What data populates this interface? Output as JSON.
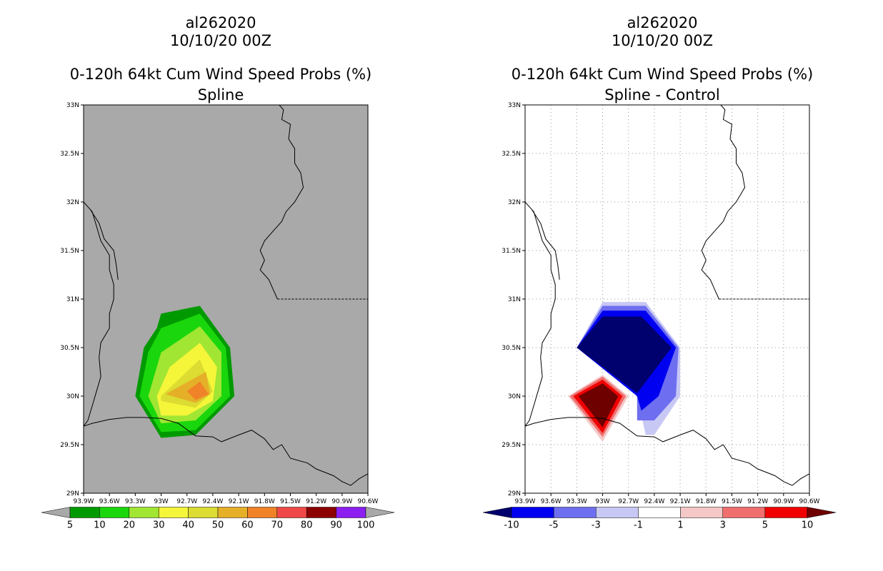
{
  "chart_data": [
    {
      "type": "filled_contour_map",
      "storm_id": "al262020",
      "date": "10/10/20 00Z",
      "title": "0-120h 64kt Cum Wind Speed Probs (%)",
      "subtitle": "Spline",
      "units": "%",
      "grid": false,
      "background": "#a9a9a9",
      "lat_range": [
        29,
        33
      ],
      "lon_range": [
        -93.9,
        -90.6
      ],
      "lat_ticks": [
        "29N",
        "29.5N",
        "30N",
        "30.5N",
        "31N",
        "31.5N",
        "32N",
        "32.5N",
        "33N"
      ],
      "lon_ticks": [
        "93.9W",
        "93.6W",
        "93.3W",
        "93W",
        "92.7W",
        "92.4W",
        "92.1W",
        "91.8W",
        "91.5W",
        "91.2W",
        "90.9W",
        "90.6W"
      ],
      "colorbar": {
        "labels": [
          "5",
          "10",
          "20",
          "30",
          "40",
          "50",
          "60",
          "70",
          "80",
          "90",
          "100"
        ],
        "colors": [
          "#009a00",
          "#1ad60c",
          "#a0e632",
          "#f5f53a",
          "#dcdc32",
          "#e6af28",
          "#f08228",
          "#f04848",
          "#8c0000",
          "#8c1ef0"
        ],
        "end_arrows": true
      },
      "contours": [
        {
          "level": 5,
          "color": "#009a00",
          "points": [
            [
              -93.3,
              30.0
            ],
            [
              -93.2,
              30.5
            ],
            [
              -93.05,
              30.7
            ],
            [
              -93.0,
              30.85
            ],
            [
              -92.55,
              30.93
            ],
            [
              -92.2,
              30.5
            ],
            [
              -92.15,
              30.0
            ],
            [
              -92.6,
              29.6
            ],
            [
              -93.0,
              29.57
            ],
            [
              -93.3,
              30.0
            ]
          ]
        },
        {
          "level": 10,
          "color": "#1ad60c",
          "points": [
            [
              -93.25,
              30.0
            ],
            [
              -93.15,
              30.45
            ],
            [
              -93.0,
              30.7
            ],
            [
              -92.55,
              30.85
            ],
            [
              -92.25,
              30.5
            ],
            [
              -92.2,
              30.0
            ],
            [
              -92.6,
              29.65
            ],
            [
              -93.0,
              29.63
            ],
            [
              -93.25,
              30.0
            ]
          ]
        },
        {
          "level": 20,
          "color": "#a0e632",
          "points": [
            [
              -93.15,
              30.0
            ],
            [
              -93.0,
              30.45
            ],
            [
              -92.55,
              30.72
            ],
            [
              -92.3,
              30.45
            ],
            [
              -92.3,
              30.0
            ],
            [
              -92.6,
              29.75
            ],
            [
              -93.0,
              29.72
            ],
            [
              -93.15,
              30.0
            ]
          ]
        },
        {
          "level": 30,
          "color": "#f5f53a",
          "points": [
            [
              -93.05,
              30.0
            ],
            [
              -92.9,
              30.3
            ],
            [
              -92.55,
              30.55
            ],
            [
              -92.35,
              30.3
            ],
            [
              -92.4,
              29.95
            ],
            [
              -92.7,
              29.8
            ],
            [
              -93.0,
              29.8
            ],
            [
              -93.05,
              30.0
            ]
          ]
        },
        {
          "level": 40,
          "color": "#dcdc32",
          "points": [
            [
              -93.0,
              30.0
            ],
            [
              -92.55,
              30.38
            ],
            [
              -92.4,
              30.05
            ],
            [
              -92.6,
              29.88
            ],
            [
              -93.0,
              29.95
            ],
            [
              -93.0,
              30.0
            ]
          ]
        },
        {
          "level": 50,
          "color": "#e6af28",
          "points": [
            [
              -92.95,
              30.02
            ],
            [
              -92.48,
              30.25
            ],
            [
              -92.43,
              30.02
            ],
            [
              -92.6,
              29.93
            ],
            [
              -92.95,
              30.02
            ]
          ]
        },
        {
          "level": 60,
          "color": "#f08228",
          "points": [
            [
              -92.7,
              30.05
            ],
            [
              -92.55,
              30.15
            ],
            [
              -92.45,
              30.02
            ],
            [
              -92.6,
              29.96
            ],
            [
              -92.7,
              30.05
            ]
          ]
        }
      ]
    },
    {
      "type": "filled_contour_map",
      "storm_id": "al262020",
      "date": "10/10/20 00Z",
      "title": "0-120h 64kt Cum Wind Speed Probs (%)",
      "subtitle": "Spline - Control",
      "units": "%",
      "grid": true,
      "background": "#ffffff",
      "lat_range": [
        29,
        33
      ],
      "lon_range": [
        -93.9,
        -90.6
      ],
      "lat_ticks": [
        "29N",
        "29.5N",
        "30N",
        "30.5N",
        "31N",
        "31.5N",
        "32N",
        "32.5N",
        "33N"
      ],
      "lon_ticks": [
        "93.9W",
        "93.6W",
        "93.3W",
        "93W",
        "92.7W",
        "92.4W",
        "92.1W",
        "91.8W",
        "91.5W",
        "91.2W",
        "90.9W",
        "90.6W"
      ],
      "colorbar": {
        "labels": [
          "-10",
          "-5",
          "-3",
          "-1",
          "1",
          "3",
          "5",
          "10"
        ],
        "colors": [
          "#00006e",
          "#0000f0",
          "#6e6ef0",
          "#c8c8f5",
          "#ffffff",
          "#f5c8c8",
          "#f06e6e",
          "#f00000",
          "#6e0000"
        ],
        "end_arrows": true
      },
      "contours": [
        {
          "level": -1,
          "color": "#c8c8f5",
          "points": [
            [
              -93.3,
              30.5
            ],
            [
              -93.0,
              30.97
            ],
            [
              -92.5,
              30.97
            ],
            [
              -92.1,
              30.5
            ],
            [
              -92.1,
              30.0
            ],
            [
              -92.4,
              29.6
            ],
            [
              -92.5,
              29.6
            ],
            [
              -92.6,
              30.0
            ],
            [
              -93.3,
              30.5
            ]
          ]
        },
        {
          "level": -3,
          "color": "#6e6ef0",
          "points": [
            [
              -93.3,
              30.5
            ],
            [
              -93.0,
              30.93
            ],
            [
              -92.5,
              30.93
            ],
            [
              -92.12,
              30.5
            ],
            [
              -92.15,
              30.0
            ],
            [
              -92.4,
              29.75
            ],
            [
              -92.6,
              29.75
            ],
            [
              -92.6,
              30.0
            ],
            [
              -93.3,
              30.5
            ]
          ]
        },
        {
          "level": -5,
          "color": "#0000f0",
          "points": [
            [
              -93.3,
              30.5
            ],
            [
              -93.0,
              30.88
            ],
            [
              -92.5,
              30.88
            ],
            [
              -92.15,
              30.5
            ],
            [
              -92.35,
              30.0
            ],
            [
              -92.55,
              29.85
            ],
            [
              -92.6,
              30.0
            ],
            [
              -93.3,
              30.5
            ]
          ]
        },
        {
          "level": -10,
          "color": "#00006e",
          "points": [
            [
              -93.3,
              30.5
            ],
            [
              -93.0,
              30.82
            ],
            [
              -92.55,
              30.82
            ],
            [
              -92.2,
              30.5
            ],
            [
              -92.6,
              30.03
            ],
            [
              -93.3,
              30.5
            ]
          ]
        },
        {
          "level": 1,
          "color": "#f5c8c8",
          "points": [
            [
              -93.4,
              30.0
            ],
            [
              -93.0,
              30.22
            ],
            [
              -92.7,
              30.0
            ],
            [
              -93.0,
              29.53
            ],
            [
              -93.4,
              30.0
            ]
          ]
        },
        {
          "level": 3,
          "color": "#f06e6e",
          "points": [
            [
              -93.38,
              30.0
            ],
            [
              -93.0,
              30.2
            ],
            [
              -92.73,
              30.0
            ],
            [
              -93.0,
              29.58
            ],
            [
              -93.38,
              30.0
            ]
          ]
        },
        {
          "level": 5,
          "color": "#f00000",
          "points": [
            [
              -93.34,
              30.0
            ],
            [
              -93.0,
              30.17
            ],
            [
              -92.77,
              30.0
            ],
            [
              -93.0,
              29.62
            ],
            [
              -93.34,
              30.0
            ]
          ]
        },
        {
          "level": 10,
          "color": "#6e0000",
          "points": [
            [
              -93.28,
              30.0
            ],
            [
              -93.0,
              30.13
            ],
            [
              -92.82,
              30.0
            ],
            [
              -93.0,
              29.68
            ],
            [
              -93.28,
              30.0
            ]
          ]
        }
      ]
    }
  ]
}
